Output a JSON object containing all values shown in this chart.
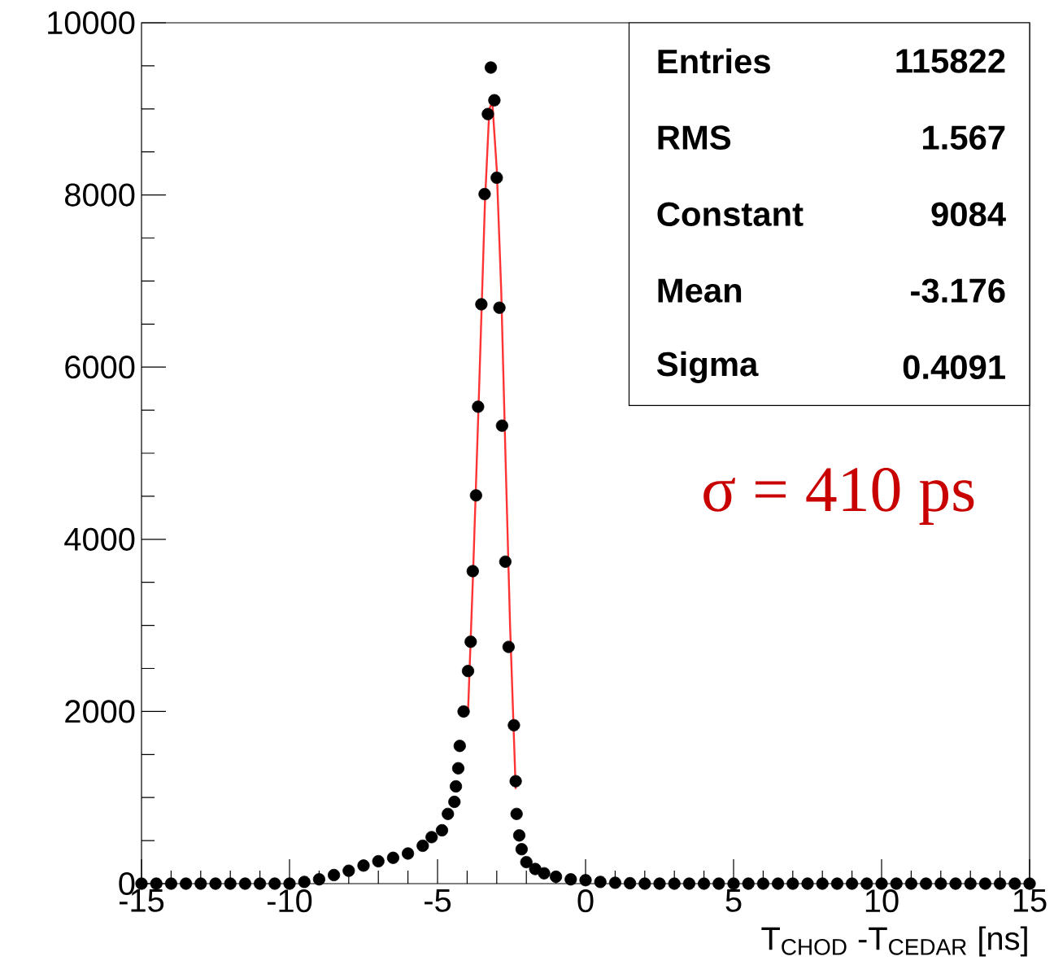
{
  "chart_data": {
    "type": "scatter",
    "xlabel": "T$_{CHOD}$ -T$_{CEDAR}$ [ns]",
    "xlim": [
      -15,
      15
    ],
    "xticks": [
      -15,
      -10,
      -5,
      0,
      5,
      10,
      15
    ],
    "ylim": [
      0,
      10000
    ],
    "yticks": [
      0,
      2000,
      4000,
      6000,
      8000,
      10000
    ],
    "annotations": [
      "Entries",
      "115822",
      "RMS",
      "1.567",
      "Constant",
      "9084",
      "Mean",
      "-3.176",
      "Sigma",
      "0.4091",
      "σ = 410 ps"
    ],
    "series": [
      {
        "color": "#000000",
        "marker": "circle",
        "x": [
          -15,
          -14.5,
          -14,
          -13.5,
          -13,
          -12.5,
          -12,
          -11.5,
          -11,
          -10.5,
          -10,
          -9.5,
          -9,
          -8.5,
          -8,
          -7.5,
          -7,
          -6.5,
          -6,
          -5.5,
          -5.2,
          -4.85,
          -4.65,
          -4.43,
          -4.38,
          -4.3,
          -4.25,
          -4.12,
          -3.97,
          -3.88,
          -3.81,
          -3.7,
          -3.63,
          -3.52,
          -3.41,
          -3.3,
          -3.2,
          -3.08,
          -3.0,
          -2.91,
          -2.82,
          -2.71,
          -2.6,
          -2.42,
          -2.36,
          -2.33,
          -2.24,
          -2.16,
          -2.0,
          -1.7,
          -1.4,
          -1.0,
          -0.5,
          0,
          0.5,
          1,
          1.5,
          2,
          2.5,
          3,
          3.5,
          4,
          4.5,
          5,
          5.5,
          6,
          6.5,
          7,
          7.5,
          8,
          8.5,
          9,
          9.5,
          10,
          10.5,
          11,
          11.5,
          12,
          12.5,
          13,
          13.5,
          14,
          14.5,
          15
        ],
        "values": [
          0,
          0,
          0,
          0,
          0,
          0,
          0,
          0,
          0,
          0,
          0,
          20,
          50,
          100,
          150,
          210,
          260,
          300,
          350,
          440,
          540,
          620,
          810,
          950,
          1130,
          1340,
          1600,
          2000,
          2470,
          2810,
          3630,
          4510,
          5540,
          6730,
          8010,
          8940,
          9480,
          9100,
          8200,
          6690,
          5320,
          3740,
          2750,
          1840,
          1190,
          810,
          560,
          400,
          250,
          170,
          120,
          80,
          50,
          40,
          20,
          10,
          5,
          0,
          0,
          0,
          0,
          0,
          0,
          0,
          0,
          0,
          0,
          0,
          0,
          0,
          0,
          0,
          0,
          0,
          0,
          0,
          0,
          0,
          0,
          0,
          0,
          0,
          0,
          0
        ]
      },
      {
        "type": "line",
        "color": "#ff3333",
        "marker": "none",
        "x": [
          -3.97,
          -3.8,
          -3.6,
          -3.4,
          -3.25,
          -3.15,
          -3.0,
          -2.85,
          -2.7,
          -2.55,
          -2.36
        ],
        "values": [
          2000,
          3600,
          5700,
          7900,
          9000,
          9080,
          8300,
          6900,
          4900,
          3000,
          1100
        ]
      }
    ]
  }
}
